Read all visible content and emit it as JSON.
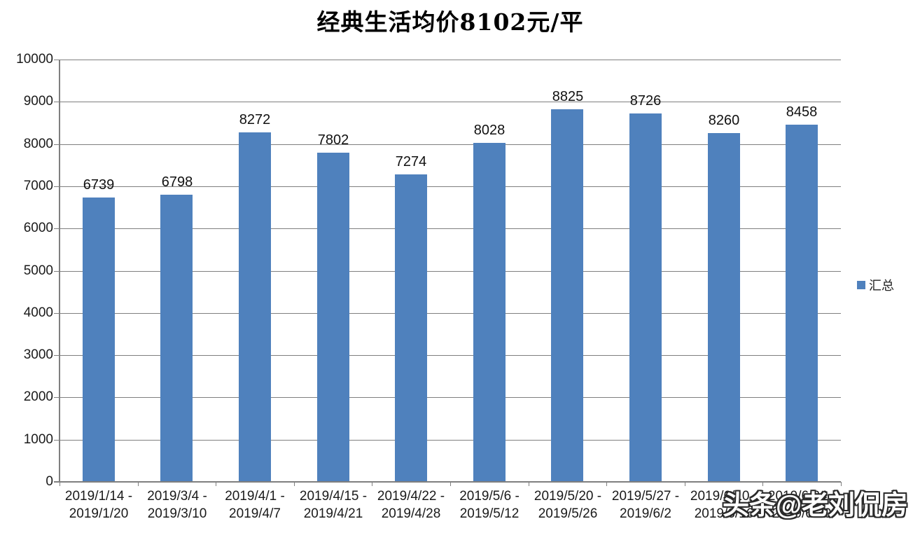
{
  "title": "经典生活均价8102元/平",
  "legend": {
    "label": "汇总",
    "swatch_color": "#4F81BD"
  },
  "watermark": {
    "text": "头条@老刘侃房"
  },
  "colors": {
    "bar": "#4F81BD",
    "gridline": "#7f7f7f",
    "axis": "#7f7f7f",
    "text": "#1a1a1a",
    "background": "#ffffff"
  },
  "chart_data": {
    "type": "bar",
    "title": "经典生活均价8102元/平",
    "categories": [
      "2019/1/14 - 2019/1/20",
      "2019/3/4 - 2019/3/10",
      "2019/4/1 - 2019/4/7",
      "2019/4/15 - 2019/4/21",
      "2019/4/22 - 2019/4/28",
      "2019/5/6 - 2019/5/12",
      "2019/5/20 - 2019/5/26",
      "2019/5/27 - 2019/6/2",
      "2019/6/10 - 2019/6/16",
      "2019/6/24 - 2019/6/30"
    ],
    "series": [
      {
        "name": "汇总",
        "values": [
          6739,
          6798,
          8272,
          7802,
          7274,
          8028,
          8825,
          8726,
          8260,
          8458
        ]
      }
    ],
    "values": [
      6739,
      6798,
      8272,
      7802,
      7274,
      8028,
      8825,
      8726,
      8260,
      8458
    ],
    "data_labels": true,
    "xlabel": "",
    "ylabel": "",
    "ylim": [
      0,
      10000
    ],
    "ytick_step": 1000,
    "grid": true,
    "legend_position": "right",
    "bar_color": "#4F81BD"
  }
}
